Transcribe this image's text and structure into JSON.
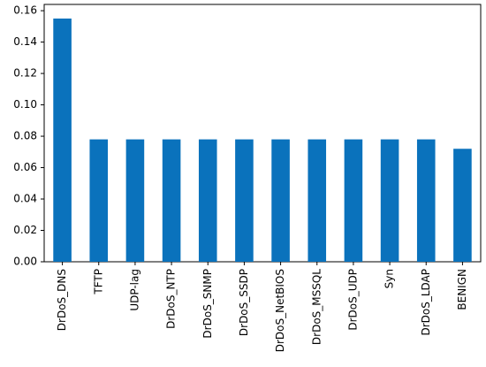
{
  "chart_data": {
    "type": "bar",
    "categories": [
      "DrDoS_DNS",
      "TFTP",
      "UDP-lag",
      "DrDoS_NTP",
      "DrDoS_SNMP",
      "DrDoS_SSDP",
      "DrDoS_NetBIOS",
      "DrDoS_MSSQL",
      "DrDoS_UDP",
      "Syn",
      "DrDoS_LDAP",
      "BENIGN"
    ],
    "values": [
      0.155,
      0.078,
      0.078,
      0.078,
      0.078,
      0.078,
      0.078,
      0.078,
      0.078,
      0.078,
      0.078,
      0.072
    ],
    "color": "#0a72bc",
    "ylim": [
      0,
      0.164
    ],
    "yticks": [
      {
        "value": 0,
        "label": "0.00"
      },
      {
        "value": 0.02,
        "label": "0.02"
      },
      {
        "value": 0.04,
        "label": "0.04"
      },
      {
        "value": 0.06,
        "label": "0.06"
      },
      {
        "value": 0.08,
        "label": "0.08"
      },
      {
        "value": 0.1,
        "label": "0.10"
      },
      {
        "value": 0.12,
        "label": "0.12"
      },
      {
        "value": 0.14,
        "label": "0.14"
      },
      {
        "value": 0.16,
        "label": "0.16"
      }
    ],
    "grid": false
  }
}
